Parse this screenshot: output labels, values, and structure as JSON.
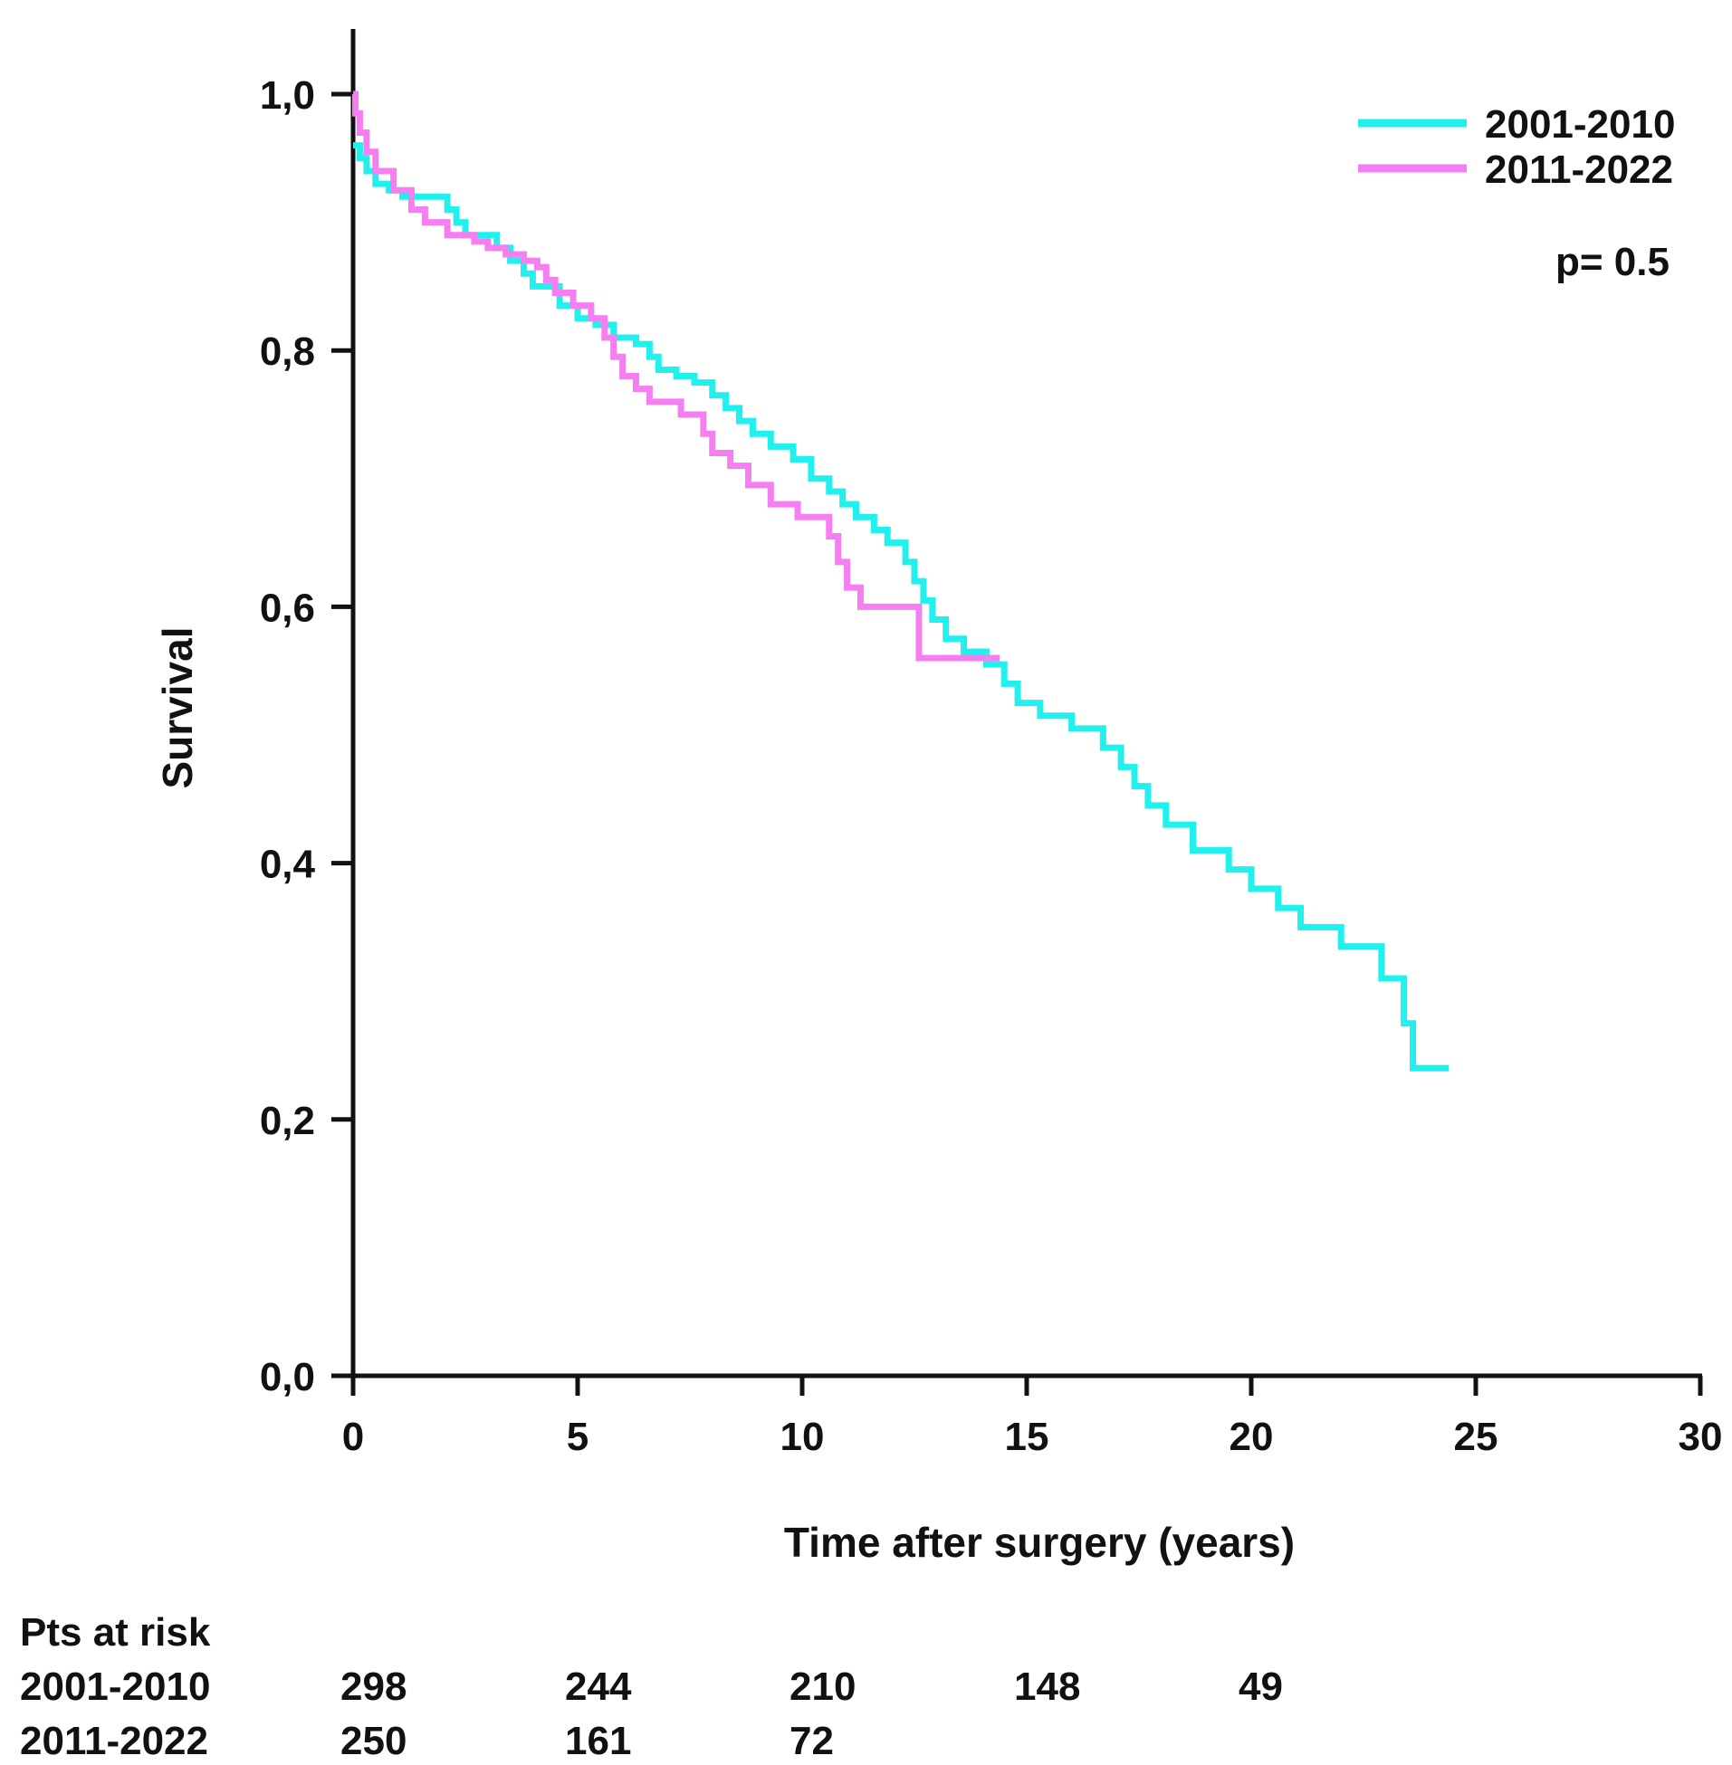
{
  "chart_data": {
    "type": "line",
    "xlabel": "Time after surgery (years)",
    "ylabel": "Survival",
    "xlim": [
      0,
      30
    ],
    "ylim": [
      0,
      1
    ],
    "x_ticks": [
      0,
      5,
      10,
      15,
      20,
      25,
      30
    ],
    "x_tick_labels": [
      "0",
      "5",
      "10",
      "15",
      "20",
      "25",
      "30"
    ],
    "y_ticks": [
      0,
      0.2,
      0.4,
      0.6,
      0.8,
      1.0
    ],
    "y_tick_labels": [
      "0,0",
      "0,2",
      "0,4",
      "0,6",
      "0,8",
      "1,0"
    ],
    "grid": false,
    "legend": "top-right",
    "annotation": "p= 0.5",
    "series": [
      {
        "name": "2001-2010",
        "color": "#22f0ec",
        "step": true,
        "x": [
          0,
          0.15,
          0.3,
          0.5,
          0.8,
          1.1,
          2.1,
          2.3,
          2.5,
          3.2,
          3.5,
          3.8,
          4.0,
          4.6,
          5.0,
          5.4,
          5.8,
          6.3,
          6.6,
          6.8,
          7.2,
          7.6,
          8.0,
          8.3,
          8.6,
          8.9,
          9.3,
          9.8,
          10.2,
          10.6,
          10.9,
          11.2,
          11.6,
          11.9,
          12.3,
          12.5,
          12.7,
          12.9,
          13.2,
          13.6,
          14.1,
          14.5,
          14.8,
          15.3,
          16.0,
          16.7,
          17.1,
          17.4,
          17.7,
          18.1,
          18.7,
          19.5,
          20.0,
          20.6,
          21.1,
          22.0,
          22.9,
          23.4,
          23.6,
          24.4
        ],
        "y": [
          0.96,
          0.95,
          0.94,
          0.93,
          0.925,
          0.92,
          0.91,
          0.9,
          0.89,
          0.88,
          0.87,
          0.86,
          0.85,
          0.835,
          0.825,
          0.82,
          0.81,
          0.805,
          0.795,
          0.785,
          0.78,
          0.775,
          0.765,
          0.755,
          0.745,
          0.735,
          0.725,
          0.715,
          0.7,
          0.69,
          0.68,
          0.67,
          0.66,
          0.65,
          0.635,
          0.62,
          0.605,
          0.59,
          0.575,
          0.565,
          0.555,
          0.54,
          0.525,
          0.515,
          0.505,
          0.49,
          0.475,
          0.46,
          0.445,
          0.43,
          0.41,
          0.395,
          0.38,
          0.365,
          0.35,
          0.335,
          0.31,
          0.275,
          0.24,
          0.24
        ]
      },
      {
        "name": "2011-2022",
        "color": "#f57ef0",
        "step": true,
        "x": [
          0,
          0.05,
          0.15,
          0.3,
          0.5,
          0.9,
          1.3,
          1.6,
          2.1,
          2.7,
          3.0,
          3.4,
          3.8,
          4.1,
          4.3,
          4.5,
          4.9,
          5.3,
          5.6,
          5.8,
          6.0,
          6.3,
          6.6,
          7.3,
          7.8,
          8.0,
          8.4,
          8.8,
          9.3,
          9.9,
          10.6,
          10.8,
          11.0,
          11.3,
          12.6,
          14.4
        ],
        "y": [
          1.0,
          0.985,
          0.97,
          0.955,
          0.94,
          0.925,
          0.91,
          0.9,
          0.89,
          0.885,
          0.88,
          0.875,
          0.87,
          0.865,
          0.855,
          0.845,
          0.835,
          0.825,
          0.81,
          0.795,
          0.78,
          0.77,
          0.76,
          0.75,
          0.735,
          0.72,
          0.71,
          0.695,
          0.68,
          0.67,
          0.655,
          0.635,
          0.615,
          0.6,
          0.56,
          0.56
        ]
      }
    ],
    "risk_table": {
      "title": "Pts at risk",
      "rows": [
        {
          "name": "2001-2010",
          "values": [
            "298",
            "244",
            "210",
            "148",
            "49"
          ],
          "at_x": [
            0,
            5,
            10,
            15,
            20
          ]
        },
        {
          "name": "2011-2022",
          "values": [
            "250",
            "161",
            "72"
          ],
          "at_x": [
            0,
            5,
            10
          ]
        }
      ]
    }
  }
}
